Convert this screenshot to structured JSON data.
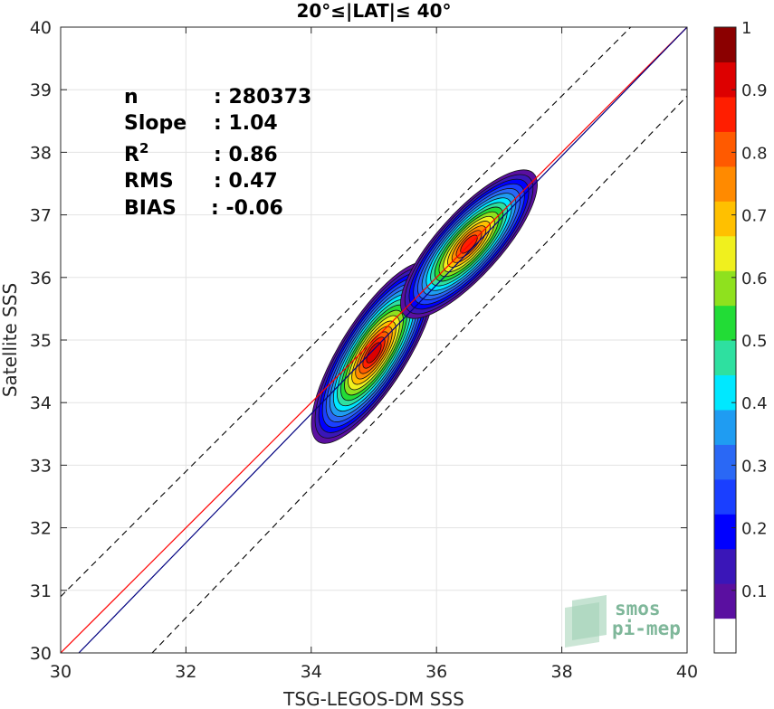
{
  "chart_data": {
    "type": "heatmap",
    "title": "20°≤|LAT|≤ 40°",
    "xlabel": "TSG-LEGOS-DM SSS",
    "ylabel": "Satellite SSS",
    "xlim": [
      30,
      40
    ],
    "ylim": [
      30,
      40
    ],
    "x_ticks": [
      "30",
      "32",
      "34",
      "36",
      "38",
      "40"
    ],
    "y_ticks": [
      "30",
      "31",
      "32",
      "33",
      "34",
      "35",
      "36",
      "37",
      "38",
      "39",
      "40"
    ],
    "grid": true,
    "stats": {
      "n_label": "n",
      "n_value": ": 280373",
      "slope_label": "Slope",
      "slope_value": ": 1.04",
      "r2_label": "R",
      "r2_sup": "2",
      "r2_value": ": 0.86",
      "rms_label": "RMS",
      "rms_value": ": 0.47",
      "bias_label": "BIAS",
      "bias_value": ": -0.06"
    },
    "lines": {
      "one_to_one": {
        "x": [
          30,
          40
        ],
        "y": [
          30,
          40
        ],
        "color": "#ff0000"
      },
      "regression": {
        "x": [
          30.29,
          40
        ],
        "y": [
          30,
          40
        ],
        "color": "#000080"
      },
      "upper_bound": {
        "x": [
          30,
          39.1
        ],
        "y": [
          30.9,
          40
        ],
        "style": "dashed",
        "color": "#000000"
      },
      "lower_bound": {
        "x": [
          31.46,
          40
        ],
        "y": [
          30,
          38.9
        ],
        "style": "dashed",
        "color": "#000000"
      }
    },
    "density_peaks": [
      {
        "x": 35.0,
        "y": 34.8,
        "density": 1.0
      },
      {
        "x": 36.5,
        "y": 36.5,
        "density": 0.92
      }
    ],
    "colorbar": {
      "ticks": [
        "0.1",
        "0.2",
        "0.3",
        "0.4",
        "0.5",
        "0.6",
        "0.7",
        "0.8",
        "0.9",
        "1"
      ],
      "range": [
        0,
        1
      ],
      "colors": [
        "#ffffff",
        "#5a0fa0",
        "#3a16b8",
        "#0000ff",
        "#1a3fff",
        "#2a68f5",
        "#1f9cf2",
        "#00e8ff",
        "#2ee0a0",
        "#22dc36",
        "#8fe11e",
        "#f0f01e",
        "#ffc000",
        "#ff8a00",
        "#ff5a00",
        "#ff1e00",
        "#dd0000",
        "#8b0000"
      ]
    },
    "logo_lines": [
      "smos",
      "pi-mep"
    ]
  }
}
